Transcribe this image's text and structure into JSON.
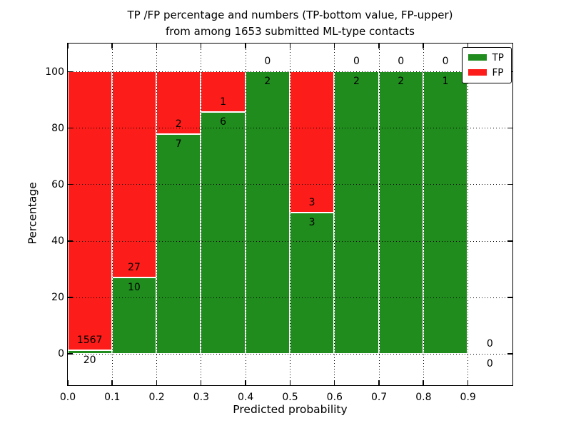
{
  "figure": {
    "title_line1": "TP /FP percentage and numbers (TP-bottom value, FP-upper)",
    "title_line2": "from among 1653 submitted ML-type contacts",
    "xlabel": "Predicted probability",
    "ylabel": "Percentage"
  },
  "legend": {
    "items": [
      {
        "label": "TP",
        "color": "#1f8c1d"
      },
      {
        "label": "FP",
        "color": "#fc1c19"
      }
    ]
  },
  "chart_data": {
    "type": "bar",
    "stacked": true,
    "normalized_to_percent": true,
    "title": "TP /FP percentage and numbers (TP-bottom value, FP-upper)\nfrom among 1653 submitted ML-type contacts",
    "xlabel": "Predicted probability",
    "ylabel": "Percentage",
    "xlim": [
      0.0,
      1.0
    ],
    "ylim": [
      -11,
      110
    ],
    "xticks": [
      0.0,
      0.1,
      0.2,
      0.3,
      0.4,
      0.5,
      0.6,
      0.7,
      0.8,
      0.9
    ],
    "xtick_labels": [
      "0.0",
      "0.1",
      "0.2",
      "0.3",
      "0.4",
      "0.5",
      "0.6",
      "0.7",
      "0.8",
      "0.9"
    ],
    "yticks": [
      0,
      20,
      40,
      60,
      80,
      100
    ],
    "ytick_labels": [
      "0",
      "20",
      "40",
      "60",
      "80",
      "100"
    ],
    "grid": true,
    "grid_style": "dotted",
    "legend_position": "upper right",
    "series": [
      {
        "name": "TP",
        "color": "#1f8c1d",
        "counts": [
          20,
          10,
          7,
          6,
          2,
          3,
          2,
          2,
          1,
          0
        ]
      },
      {
        "name": "FP",
        "color": "#fc1c19",
        "counts": [
          1567,
          27,
          2,
          1,
          0,
          3,
          0,
          0,
          0,
          0
        ]
      }
    ],
    "bins": [
      {
        "x0": 0.0,
        "x1": 0.1,
        "tp": 20,
        "fp": 1567,
        "tp_pct": 1.26,
        "fp_pct": 98.74
      },
      {
        "x0": 0.1,
        "x1": 0.2,
        "tp": 10,
        "fp": 27,
        "tp_pct": 27.03,
        "fp_pct": 72.97
      },
      {
        "x0": 0.2,
        "x1": 0.3,
        "tp": 7,
        "fp": 2,
        "tp_pct": 77.78,
        "fp_pct": 22.22
      },
      {
        "x0": 0.3,
        "x1": 0.4,
        "tp": 6,
        "fp": 1,
        "tp_pct": 85.71,
        "fp_pct": 14.29
      },
      {
        "x0": 0.4,
        "x1": 0.5,
        "tp": 2,
        "fp": 0,
        "tp_pct": 100,
        "fp_pct": 0
      },
      {
        "x0": 0.5,
        "x1": 0.6,
        "tp": 3,
        "fp": 3,
        "tp_pct": 50,
        "fp_pct": 50
      },
      {
        "x0": 0.6,
        "x1": 0.7,
        "tp": 2,
        "fp": 0,
        "tp_pct": 100,
        "fp_pct": 0
      },
      {
        "x0": 0.7,
        "x1": 0.8,
        "tp": 2,
        "fp": 0,
        "tp_pct": 100,
        "fp_pct": 0
      },
      {
        "x0": 0.8,
        "x1": 0.9,
        "tp": 1,
        "fp": 0,
        "tp_pct": 100,
        "fp_pct": 0
      },
      {
        "x0": 0.9,
        "x1": 1.0,
        "tp": 0,
        "fp": 0,
        "tp_pct": null,
        "fp_pct": null
      }
    ]
  }
}
